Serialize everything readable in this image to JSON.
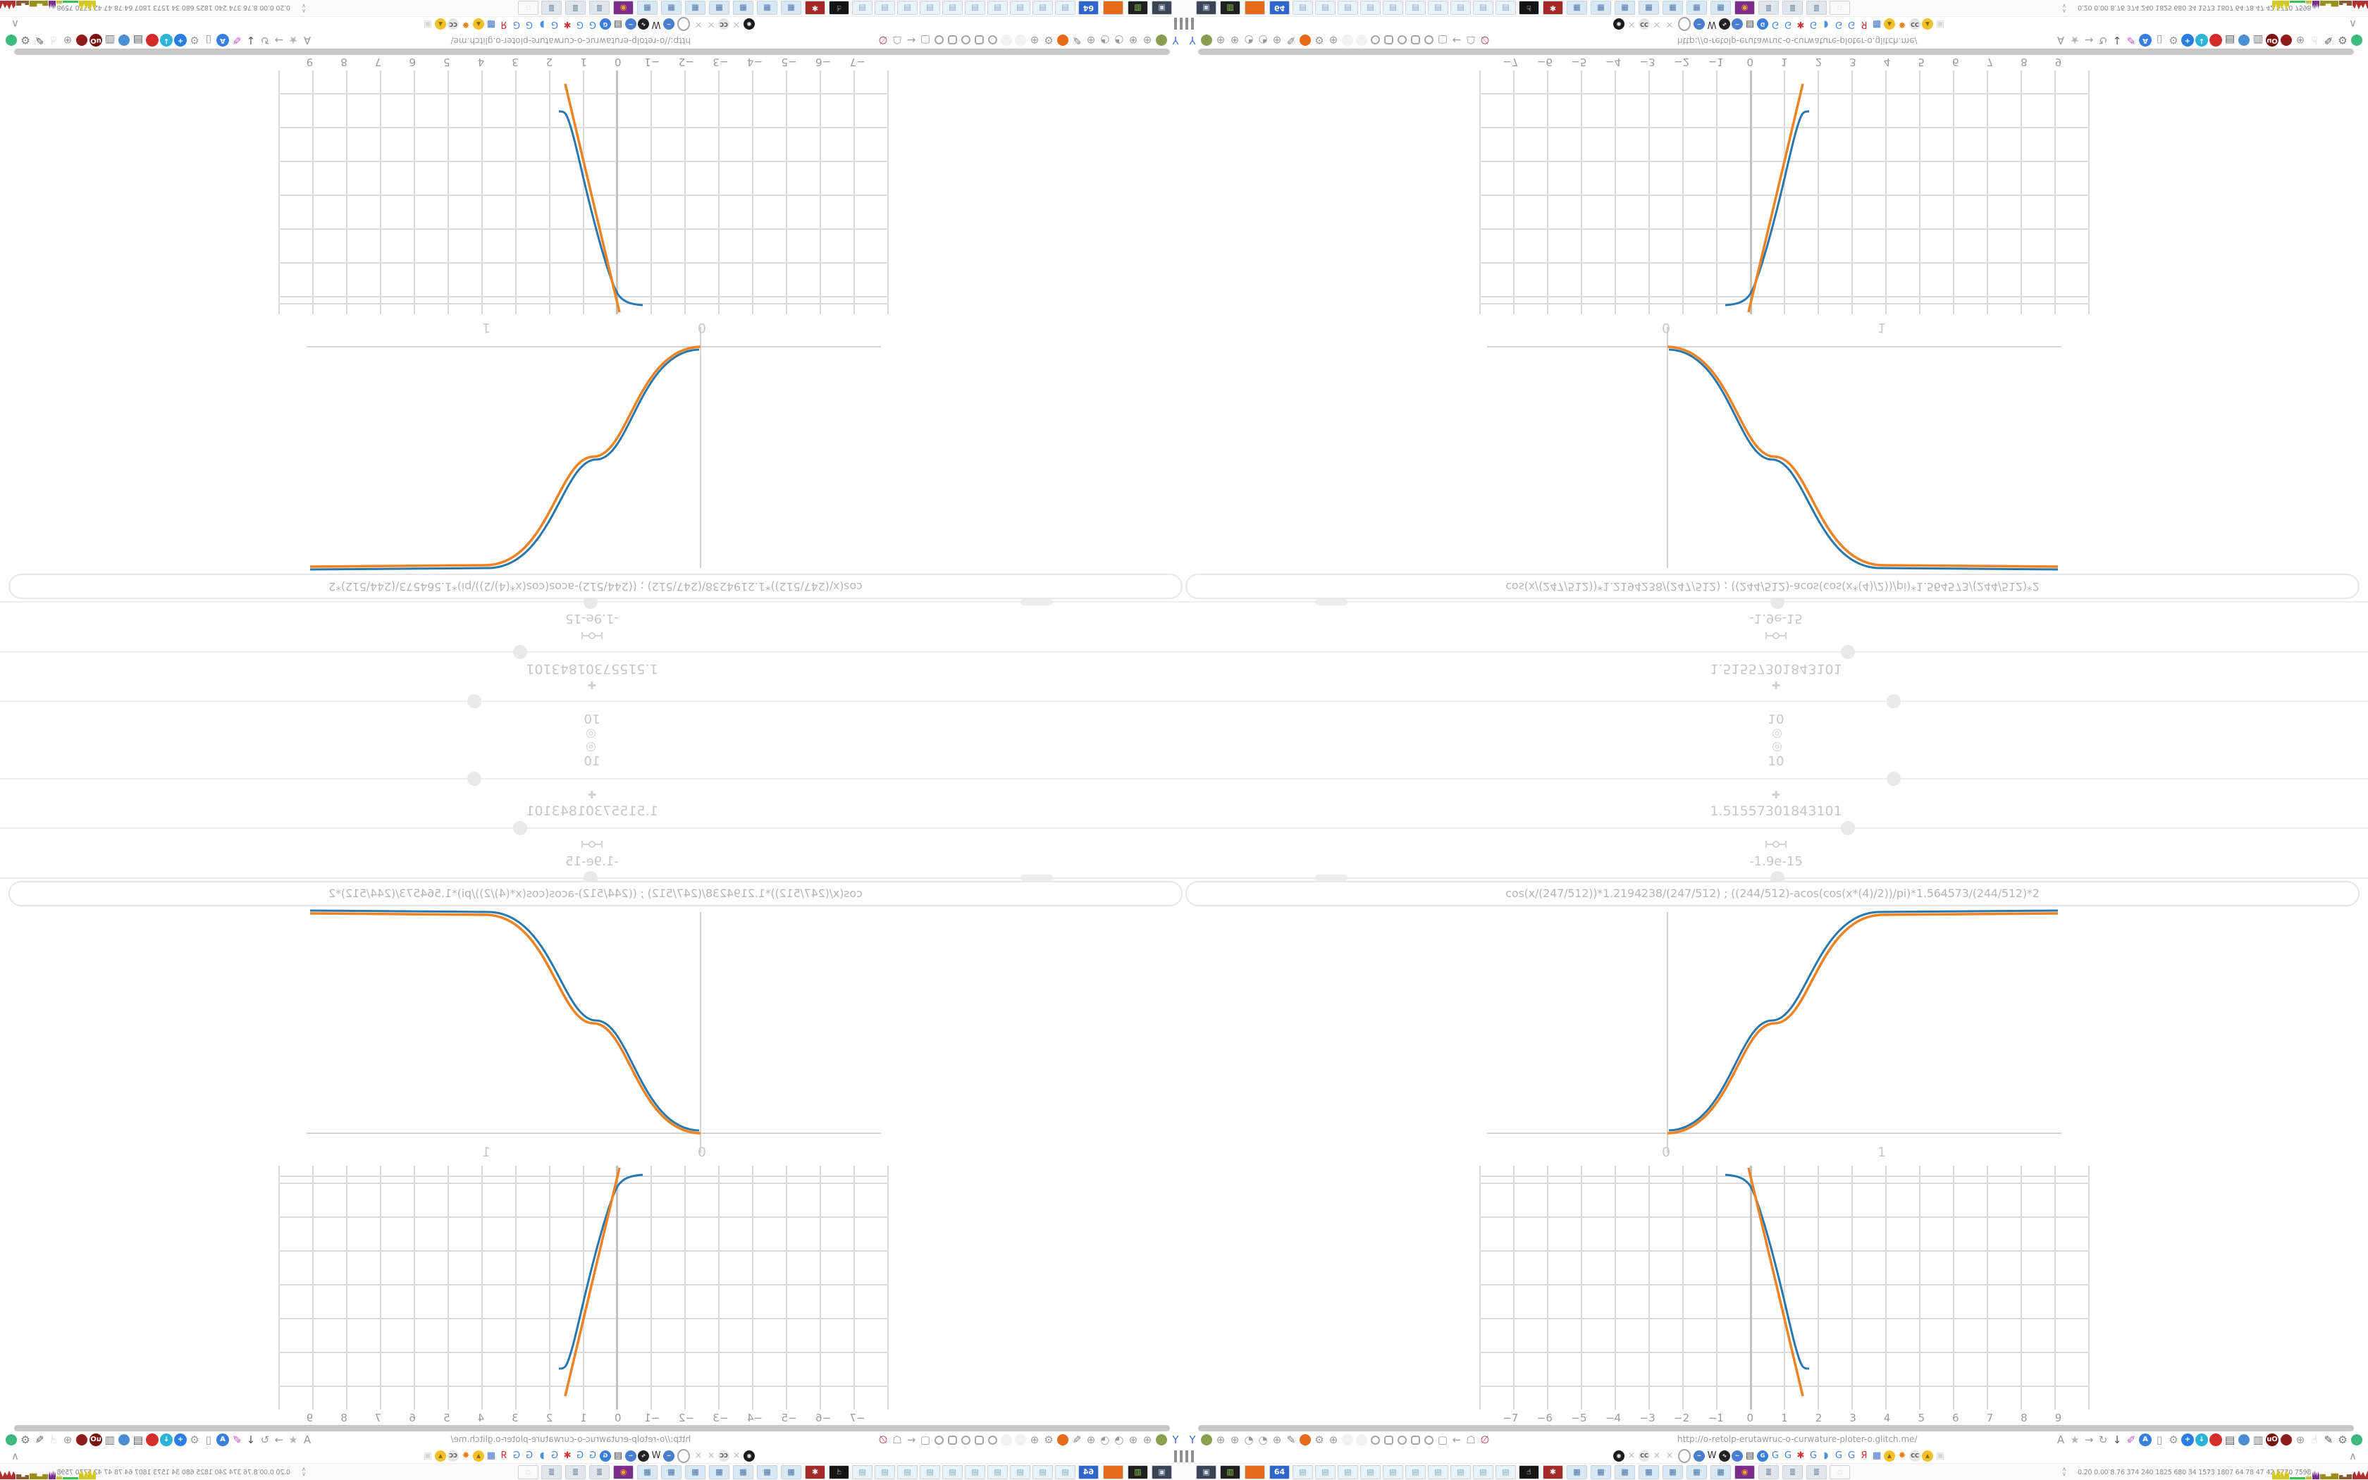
{
  "app": {
    "description": "Browser session showing a curvature-plotter web page, tiled 4x with mirror/rotation transforms",
    "accent_colors": {
      "curve_blue": "#2878ae",
      "curve_orange": "#ef8222",
      "grid_line": "#dcdcdc",
      "ui_text": "#c6c6c6"
    }
  },
  "session": {
    "calc": {
      "target_icon": "◎",
      "value_top": "10",
      "plus_icon": "✚",
      "result_mid": "1.51557301843101",
      "result_small": "-1.9e-15"
    },
    "formula": {
      "text": "cos(x/(247/512))*1.2194238/(247/512)   ;   ((244/512)-acos(cos(x*(4)/2))/pi)*1.564573/(244/512)*2"
    },
    "s_plot": {
      "x_ticks": [
        {
          "g": "0",
          "n": "tick-0",
          "i": "false"
        },
        {
          "g": "1",
          "n": "tick-1",
          "i": "false"
        }
      ]
    },
    "grid_plot": {
      "x_ticks": [
        {
          "g": "−7",
          "n": "tick--7",
          "i": "false"
        },
        {
          "g": "−6",
          "n": "tick--6",
          "i": "false"
        },
        {
          "g": "−5",
          "n": "tick--5",
          "i": "false"
        },
        {
          "g": "−4",
          "n": "tick--4",
          "i": "false"
        },
        {
          "g": "−3",
          "n": "tick--3",
          "i": "false"
        },
        {
          "g": "−2",
          "n": "tick--2",
          "i": "false"
        },
        {
          "g": "−1",
          "n": "tick--1",
          "i": "false"
        },
        {
          "g": "0",
          "n": "tick-0",
          "i": "false"
        },
        {
          "g": "1",
          "n": "tick-1",
          "i": "false"
        },
        {
          "g": "2",
          "n": "tick-2",
          "i": "false"
        },
        {
          "g": "3",
          "n": "tick-3",
          "i": "false"
        },
        {
          "g": "4",
          "n": "tick-4",
          "i": "false"
        },
        {
          "g": "5",
          "n": "tick-5",
          "i": "false"
        },
        {
          "g": "6",
          "n": "tick-6",
          "i": "false"
        },
        {
          "g": "7",
          "n": "tick-7",
          "i": "false"
        },
        {
          "g": "8",
          "n": "tick-8",
          "i": "false"
        },
        {
          "g": "9",
          "n": "tick-9",
          "i": "false"
        }
      ]
    },
    "browser": {
      "url": "http://o-retolp-erutawruc-o-curwature-ploter-o.glitch.me/",
      "collapse_chevron": "∧",
      "left_icons": [
        {
          "n": "balloons-icon",
          "g": "Y",
          "c": "#3a6fd8"
        },
        {
          "n": "camera-green-icon",
          "t": "dot",
          "b": "#8ba04f"
        },
        {
          "n": "globe-icon",
          "g": "⊕"
        },
        {
          "n": "globe-icon",
          "g": "⊕"
        },
        {
          "n": "gauge-icon",
          "g": "◔"
        },
        {
          "n": "gauge-icon",
          "g": "◔"
        },
        {
          "n": "globe-icon",
          "g": "⊕"
        },
        {
          "n": "wrench-icon",
          "g": "✎",
          "c": "#7a7a7a"
        },
        {
          "n": "firefox-icon",
          "t": "dot",
          "b": "#e66a17"
        },
        {
          "n": "gear-icon",
          "g": "⚙"
        },
        {
          "n": "globe-icon",
          "g": "⊕"
        },
        {
          "n": "ghost-icon",
          "t": "dot",
          "b": "#f1f1f1"
        },
        {
          "n": "ghost-icon",
          "t": "dot",
          "b": "#f1f1f1"
        },
        {
          "n": "radio-dot-icon",
          "t": "ring"
        },
        {
          "n": "rounded-square-icon",
          "t": "sq"
        },
        {
          "n": "radio-dot-icon",
          "t": "ring"
        },
        {
          "n": "rounded-square-icon",
          "t": "sq"
        },
        {
          "n": "radio-dot-icon",
          "t": "ring"
        },
        {
          "n": "folder-icon",
          "g": "▢"
        },
        {
          "n": "back-arrow-icon",
          "g": "←"
        },
        {
          "n": "shield-icon",
          "g": "☖"
        },
        {
          "n": "lock-disabled-icon",
          "g": "∅",
          "c": "#cc4455"
        }
      ],
      "right_icons": [
        {
          "n": "translate-icon",
          "g": "A"
        },
        {
          "n": "bookmark-star-icon",
          "g": "★",
          "c": "#b5b5b5"
        },
        {
          "n": "forward-arrow-icon",
          "g": "→"
        },
        {
          "n": "reload-icon",
          "g": "↻"
        },
        {
          "n": "download-icon",
          "g": "↓",
          "c": "#555"
        },
        {
          "n": "highlighter-icon",
          "g": "✐",
          "c": "#c94fd4"
        },
        {
          "n": "translate-blue-icon",
          "t": "badge",
          "g": "A",
          "b": "#3a7fe0"
        },
        {
          "n": "mouse-icon",
          "g": "▯"
        },
        {
          "n": "gear-icon",
          "g": "⚙"
        },
        {
          "n": "plus-badge-icon",
          "t": "badge",
          "g": "+",
          "b": "#2a7de1"
        },
        {
          "n": "save-shield-icon",
          "t": "badge",
          "g": "↓",
          "b": "#2bb3d8"
        },
        {
          "n": "record-badge-icon",
          "t": "badge",
          "g": "",
          "b": "#d62c2c"
        },
        {
          "n": "trash-icon",
          "g": "▤",
          "c": "#555"
        },
        {
          "n": "globe-color-icon",
          "t": "dot",
          "b": "#4a8fd4"
        },
        {
          "n": "archive-icon",
          "g": "▥",
          "c": "#777"
        },
        {
          "n": "ublock-shield-icon",
          "t": "badge",
          "g": "uO",
          "b": "#7a1010"
        },
        {
          "n": "red-badge-icon",
          "t": "dot",
          "b": "#8f1b1b"
        },
        {
          "n": "globe-wire-icon",
          "g": "⊕"
        },
        {
          "n": "thumb-icon",
          "g": "☝",
          "c": "#c0c0c0"
        },
        {
          "n": "wrench-icon",
          "g": "✎",
          "c": "#555"
        },
        {
          "n": "settings-gear-icon",
          "g": "⚙",
          "c": "#777"
        },
        {
          "n": "extension-status-dot",
          "t": "dot",
          "b": "#3dba7e"
        }
      ],
      "favicons": [
        {
          "n": "vinyl-icon",
          "t": "badge",
          "g": "◉",
          "b": "#1b1b1b"
        },
        {
          "n": "mute-icon",
          "g": "×",
          "c": "#bbb"
        },
        {
          "n": "cc-icon",
          "t": "badge",
          "g": "CC",
          "b": "#e6e6e6",
          "c": "#555"
        },
        {
          "n": "mute-icon",
          "g": "×",
          "c": "#bbb"
        },
        {
          "n": "mute-icon",
          "g": "×",
          "c": "#bbb"
        },
        {
          "n": "mute-ring-icon",
          "t": "ring"
        },
        {
          "n": "wave-icon",
          "t": "badge",
          "g": "~",
          "b": "#4a7fd0"
        },
        {
          "n": "wikipedia-icon",
          "g": "W",
          "c": "#333"
        },
        {
          "n": "waveform-icon",
          "t": "badge",
          "g": "∿",
          "b": "#222"
        },
        {
          "n": "wave-icon",
          "t": "badge",
          "g": "~",
          "b": "#4a7fd0"
        },
        {
          "n": "trash-icon",
          "g": "▤",
          "c": "#444"
        },
        {
          "n": "gtranslate-icon",
          "t": "badge",
          "g": "G",
          "b": "#3a7fe0"
        },
        {
          "n": "google-icon",
          "g": "G",
          "c": "#4285f4"
        },
        {
          "n": "google-icon",
          "g": "G",
          "c": "#4285f4"
        },
        {
          "n": "red-flower-icon",
          "g": "✱",
          "c": "#d03333"
        },
        {
          "n": "google-icon",
          "g": "G",
          "c": "#4285f4"
        },
        {
          "n": "blue-drop-icon",
          "g": "◗",
          "c": "#4a90e2"
        },
        {
          "n": "google-icon",
          "g": "G",
          "c": "#4285f4"
        },
        {
          "n": "google-icon",
          "g": "G",
          "c": "#4285f4"
        },
        {
          "n": "yandex-icon",
          "g": "Я",
          "c": "#d03333"
        },
        {
          "n": "grid-globe-icon",
          "g": "▦",
          "c": "#3a6fd0"
        },
        {
          "n": "photo-icon",
          "t": "badge",
          "g": "▲",
          "b": "#f2c029",
          "c": "#8a6d1a"
        },
        {
          "n": "sun-icon",
          "g": "✸",
          "c": "#e8821e"
        },
        {
          "n": "cc-icon",
          "t": "badge",
          "g": "CC",
          "b": "#e6e6e6",
          "c": "#555"
        },
        {
          "n": "photo-icon",
          "t": "badge",
          "g": "▲",
          "b": "#f2c029",
          "c": "#8a6d1a"
        },
        {
          "n": "hourglass-icon",
          "g": "▣",
          "c": "#d5d5d5"
        }
      ]
    },
    "taskbar": {
      "buttons": [
        {
          "n": "task-screenshot-tool",
          "t": "badge",
          "g": "▣",
          "b": "#3a4656",
          "c": "#cfd8e2"
        },
        {
          "n": "task-machine",
          "t": "badge",
          "g": "▥",
          "b": "#202020",
          "c": "#8fd14f"
        },
        {
          "n": "task-firefox",
          "t": "dot",
          "b": "#e66a17"
        },
        {
          "n": "task-floppy-64",
          "t": "badge",
          "g": "64",
          "b": "#2f66c9"
        },
        {
          "n": "task-notepad",
          "g": "▤",
          "c": "#7fa8bc",
          "b": "#e8f4fa"
        },
        {
          "n": "task-notepad",
          "g": "▤",
          "c": "#7fa8bc",
          "b": "#e8f4fa"
        },
        {
          "n": "task-notepad",
          "g": "▤",
          "c": "#7fa8bc",
          "b": "#e8f4fa"
        },
        {
          "n": "task-notepad",
          "g": "▤",
          "c": "#7fa8bc",
          "b": "#e8f4fa"
        },
        {
          "n": "task-notepad",
          "g": "▤",
          "c": "#7fa8bc",
          "b": "#e8f4fa"
        },
        {
          "n": "task-notepad",
          "g": "▤",
          "c": "#7fa8bc",
          "b": "#e8f4fa"
        },
        {
          "n": "task-notepad",
          "g": "▤",
          "c": "#7fa8bc",
          "b": "#e8f4fa"
        },
        {
          "n": "task-notepad",
          "g": "▤",
          "c": "#7fa8bc",
          "b": "#e8f4fa"
        },
        {
          "n": "task-notepad",
          "g": "▤",
          "c": "#7fa8bc",
          "b": "#e8f4fa"
        },
        {
          "n": "task-notepad",
          "g": "▤",
          "c": "#7fa8bc",
          "b": "#e8f4fa"
        },
        {
          "n": "task-hand",
          "t": "badge",
          "g": "☝",
          "b": "#151515"
        },
        {
          "n": "task-red-gear",
          "t": "badge",
          "g": "✱",
          "b": "#a42828"
        },
        {
          "n": "task-calculator",
          "t": "badge",
          "g": "▦",
          "b": "#d7e9f5",
          "c": "#4a6fa5"
        },
        {
          "n": "task-calculator",
          "t": "badge",
          "g": "▦",
          "b": "#d7e9f5",
          "c": "#4a6fa5"
        },
        {
          "n": "task-calculator",
          "t": "badge",
          "g": "▦",
          "b": "#d7e9f5",
          "c": "#4a6fa5"
        },
        {
          "n": "task-calculator",
          "t": "badge",
          "g": "▦",
          "b": "#d7e9f5",
          "c": "#4a6fa5"
        },
        {
          "n": "task-calculator",
          "t": "badge",
          "g": "▦",
          "b": "#d7e9f5",
          "c": "#4a6fa5"
        },
        {
          "n": "task-calculator",
          "t": "badge",
          "g": "▦",
          "b": "#d7e9f5",
          "c": "#4a6fa5"
        },
        {
          "n": "task-calculator",
          "t": "badge",
          "g": "▦",
          "b": "#d7e9f5",
          "c": "#4a6fa5"
        },
        {
          "n": "task-owl",
          "t": "badge",
          "g": "◉",
          "b": "#7b2d8b",
          "c": "#f5a623"
        },
        {
          "n": "task-scroll",
          "t": "badge",
          "g": "≣",
          "b": "#dfe6ee",
          "c": "#6b7f95"
        },
        {
          "n": "task-scroll",
          "t": "badge",
          "g": "≣",
          "b": "#dfe6ee",
          "c": "#6b7f95"
        },
        {
          "n": "task-scroll",
          "t": "badge",
          "g": "≣",
          "b": "#dfe6ee",
          "c": "#6b7f95"
        },
        {
          "n": "task-ghost",
          "g": "▫",
          "c": "#ddd"
        }
      ]
    },
    "monitor": {
      "up_arrow": "∧",
      "down_arrow": "∨",
      "stats": "0.20 0.00 8.76 374 240 1825 680 34 1573 1807 64 78 47 42 5770 7598",
      "charts": [
        {
          "n": "cpu-chart",
          "b": "#d4c91f",
          "w": 24,
          "h": 16,
          "t": "spiky"
        },
        {
          "n": "net-chart",
          "b": "#39c24a",
          "w": 22,
          "h": 3
        },
        {
          "n": "mem-chart",
          "b": "#c9b82a",
          "w": 8,
          "h": 7,
          "t": "spiky"
        },
        {
          "n": "swap-chart",
          "b": "#7b2d8b",
          "w": 10,
          "h": 14,
          "t": "spiky"
        },
        {
          "n": "load-chart",
          "b": "#9a8f1a",
          "w": 26,
          "h": 12,
          "t": "blocky"
        },
        {
          "n": "disk-chart",
          "b": "#8a5a2a",
          "w": 18,
          "h": 10,
          "t": "blocky"
        },
        {
          "n": "irq-chart",
          "b": "#b03030",
          "w": 26,
          "h": 14,
          "t": "spiky"
        }
      ]
    }
  },
  "chart_data": [
    {
      "type": "line",
      "title": "upper S-curve plot",
      "x": [
        0,
        0.125,
        0.25,
        0.375,
        0.5,
        0.625,
        0.75,
        0.875,
        1
      ],
      "series": [
        {
          "name": "curve (blue)",
          "values": [
            0,
            0.04,
            0.15,
            0.31,
            0.5,
            0.69,
            0.85,
            0.96,
            1
          ]
        },
        {
          "name": "approximation (orange)",
          "values": [
            0,
            0.05,
            0.16,
            0.32,
            0.5,
            0.68,
            0.84,
            0.95,
            1
          ]
        }
      ],
      "x_tick_labels": [
        "0",
        "1"
      ],
      "xlabel": "",
      "ylabel": "",
      "grid": false,
      "legend_position": "none"
    },
    {
      "type": "line",
      "title": "lower grid plot (steep descent near x=1)",
      "x_tick_labels": [
        "-7",
        "-6",
        "-5",
        "-4",
        "-3",
        "-2",
        "-1",
        "0",
        "1",
        "2",
        "3",
        "4",
        "5",
        "6",
        "7",
        "8",
        "9"
      ],
      "xlim": [
        -7.6,
        9.6
      ],
      "series": [
        {
          "name": "straight line (orange)",
          "points": [
            [
              -0.05,
              7.2
            ],
            [
              1.55,
              0.4
            ]
          ]
        },
        {
          "name": "clamped curve (blue)",
          "points": [
            [
              -0.75,
              7.0
            ],
            [
              0,
              6.8
            ],
            [
              0.8,
              3.6
            ],
            [
              1.3,
              1.5
            ],
            [
              1.75,
              1.2
            ]
          ]
        }
      ],
      "grid": true,
      "legend_position": "none"
    }
  ]
}
